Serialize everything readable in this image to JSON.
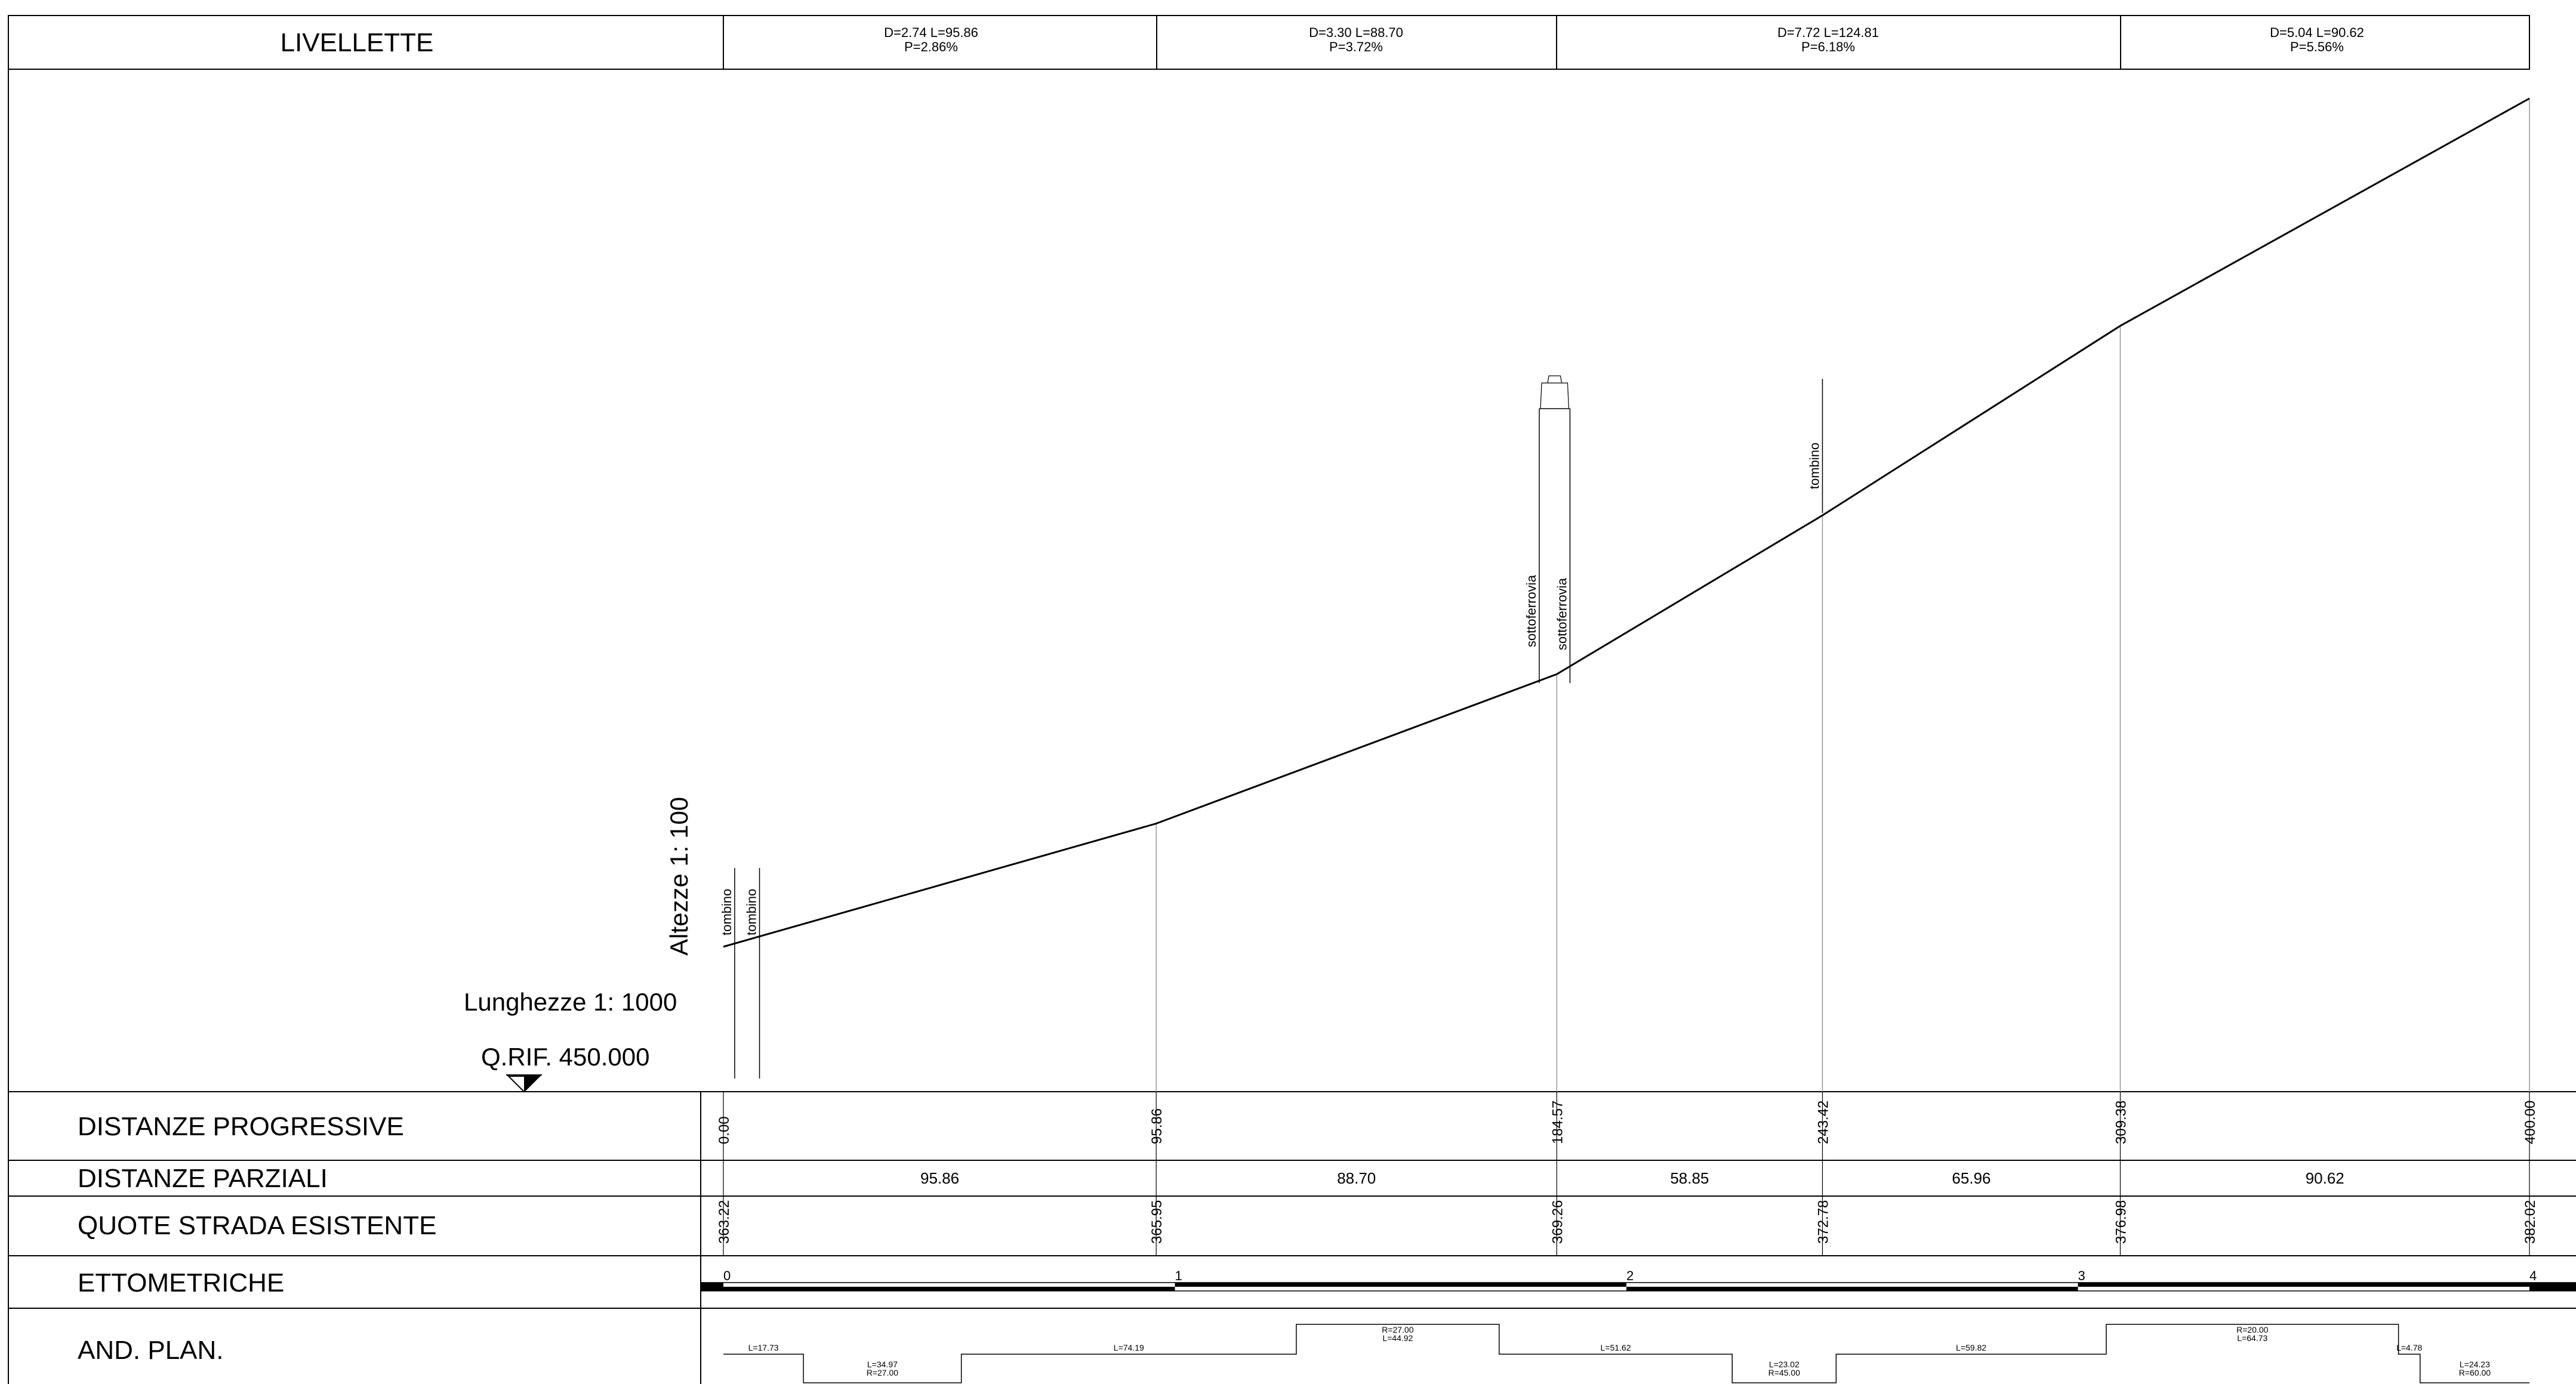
{
  "header": {
    "title": "LIVELLETTE"
  },
  "livellette": [
    {
      "line1": "D=2.74 L=95.86",
      "line2": "P=2.86%"
    },
    {
      "line1": "D=3.30 L=88.70",
      "line2": "P=3.72%"
    },
    {
      "line1": "D=7.72 L=124.81",
      "line2": "P=6.18%"
    },
    {
      "line1": "D=5.04 L=90.62",
      "line2": "P=5.56%"
    }
  ],
  "scales": {
    "altezze": "Altezze 1: 100",
    "lunghezze": "Lunghezze 1: 1000",
    "qrif": "Q.RIF. 450.000"
  },
  "structures": [
    {
      "label": "tombino",
      "station": 2.5
    },
    {
      "label": "tombino",
      "station": 8.0
    },
    {
      "label": "sottoferrovia",
      "station": 180.7
    },
    {
      "label": "sottoferrovia",
      "station": 187.5
    },
    {
      "label": "tombino",
      "station": 243.42
    }
  ],
  "profile": {
    "stations": [
      0.0,
      95.86,
      184.57,
      243.42,
      309.38,
      400.0
    ],
    "elevations": [
      363.22,
      365.95,
      369.26,
      372.78,
      376.98,
      382.02
    ]
  },
  "rows": {
    "progressive": "DISTANZE PROGRESSIVE",
    "parziali": "DISTANZE PARZIALI",
    "quote": "QUOTE STRADA ESISTENTE",
    "ettometriche": "ETTOMETRICHE",
    "and_plan": "AND. PLAN."
  },
  "progressive_values": [
    "0.00",
    "95.86",
    "184.57",
    "243.42",
    "309.38",
    "400.00"
  ],
  "parziali_values": [
    "95.86",
    "88.70",
    "58.85",
    "65.96",
    "90.62"
  ],
  "quote_values": [
    "363.22",
    "365.95",
    "369.26",
    "372.78",
    "376.98",
    "382.02"
  ],
  "ettometriche_labels": [
    "0",
    "1",
    "2",
    "3",
    "4"
  ],
  "and_plan": [
    {
      "from": 0.0,
      "to": 17.73,
      "level": "straight",
      "texts": [
        "L=17.73"
      ]
    },
    {
      "from": 17.73,
      "to": 52.7,
      "level": "low",
      "texts": [
        "L=34.97",
        "R=27.00"
      ]
    },
    {
      "from": 52.7,
      "to": 126.89,
      "level": "straight",
      "texts": [
        "L=74.19"
      ]
    },
    {
      "from": 126.89,
      "to": 171.81,
      "level": "high",
      "texts": [
        "R=27.00",
        "L=44.92"
      ]
    },
    {
      "from": 171.81,
      "to": 223.43,
      "level": "straight",
      "texts": [
        "L=51.62"
      ]
    },
    {
      "from": 223.43,
      "to": 246.45,
      "level": "low",
      "texts": [
        "L=23.02",
        "R=45.00"
      ]
    },
    {
      "from": 246.45,
      "to": 306.27,
      "level": "straight",
      "texts": [
        "L=59.82"
      ]
    },
    {
      "from": 306.27,
      "to": 371.0,
      "level": "high",
      "texts": [
        "R=20.00",
        "L=64.73"
      ]
    },
    {
      "from": 371.0,
      "to": 375.78,
      "level": "straight",
      "texts": [
        "L=4.78"
      ]
    },
    {
      "from": 375.78,
      "to": 400.0,
      "level": "low",
      "texts": [
        "L=24.23",
        "R=60.00"
      ]
    }
  ]
}
